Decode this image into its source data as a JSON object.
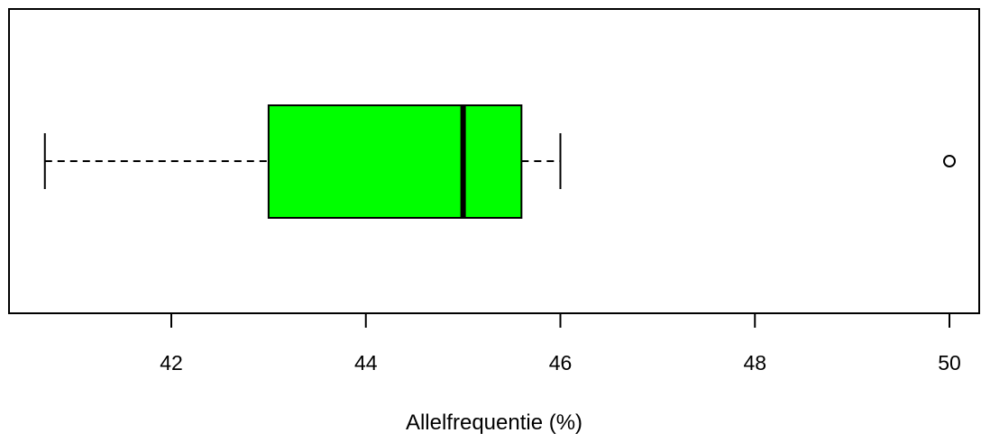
{
  "chart_data": {
    "type": "boxplot",
    "orientation": "horizontal",
    "xlabel": "Allelfrequentie (%)",
    "xlim": [
      40.65,
      50.4
    ],
    "xticks": [
      42,
      44,
      46,
      48,
      50
    ],
    "tick_labels": [
      "42",
      "44",
      "46",
      "48",
      "50"
    ],
    "box": {
      "whisker_low": 40.7,
      "q1": 43.0,
      "median": 45.0,
      "q3": 45.6,
      "whisker_high": 46.0,
      "outliers": [
        50.0
      ]
    },
    "colors": {
      "box_fill": "#00ff00",
      "line": "#000000",
      "background": "#ffffff"
    },
    "grid": false,
    "legend": "none"
  }
}
